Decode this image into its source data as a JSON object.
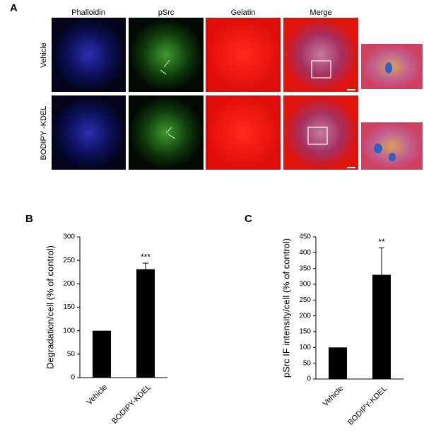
{
  "panel_letters": [
    "A",
    "B",
    "C"
  ],
  "panel_a": {
    "columns": [
      "Phalloidin",
      "pSrc",
      "Gelatin",
      "Merge"
    ],
    "rows": [
      "Vehicle",
      "BODIPY -KDEL"
    ]
  },
  "chart_data": [
    {
      "type": "bar",
      "ylabel": "Degradation/cell (% of control)",
      "categories": [
        "Vehicle",
        "BODIPY-KDEL"
      ],
      "values": [
        100,
        231
      ],
      "errors": [
        null,
        13
      ],
      "annotations": [
        null,
        "***"
      ],
      "color": "#000000",
      "ylim": [
        0,
        300
      ],
      "yticks": [
        0,
        50,
        100,
        150,
        200,
        250,
        300
      ]
    },
    {
      "type": "bar",
      "ylabel": "pSrc IF intensity/cell (% of control)",
      "categories": [
        "Vehicle",
        "BODIPY-KDEL"
      ],
      "values": [
        100,
        330
      ],
      "errors": [
        null,
        85
      ],
      "annotations": [
        null,
        "**"
      ],
      "color": "#000000",
      "ylim": [
        0,
        450
      ],
      "yticks": [
        0,
        50,
        100,
        150,
        200,
        250,
        300,
        350,
        400,
        450
      ]
    }
  ]
}
